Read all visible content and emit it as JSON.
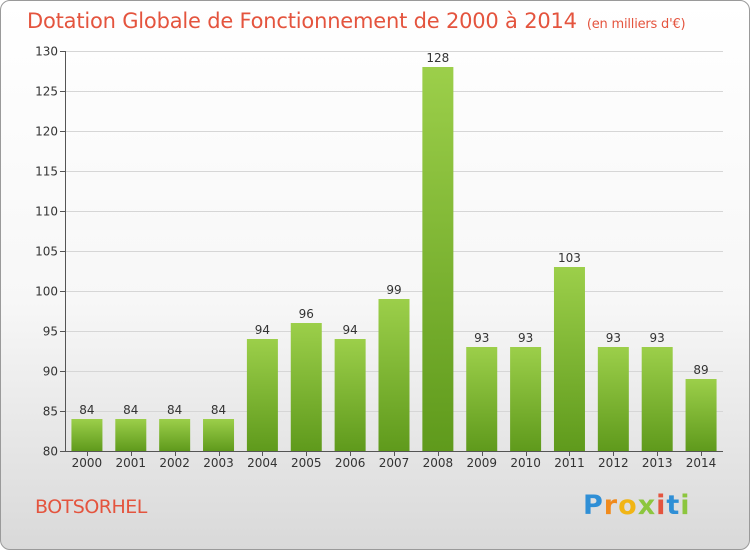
{
  "header": {
    "title": "Dotation Globale de Fonctionnement de 2000 à 2014",
    "subtitle": "(en milliers d'€)"
  },
  "place": "BOTSORHEL",
  "logo": {
    "letters": [
      "P",
      "r",
      "o",
      "x",
      "i",
      "t",
      "i"
    ]
  },
  "colors": {
    "title": "#e4543e",
    "bar_top": "#9ccf4a",
    "bar_bottom": "#5f9a1c",
    "grid": "#d6d6d6"
  },
  "chart_data": {
    "type": "bar",
    "title": "Dotation Globale de Fonctionnement de 2000 à 2014",
    "subtitle": "(en milliers d'€)",
    "categories": [
      "2000",
      "2001",
      "2002",
      "2003",
      "2004",
      "2005",
      "2006",
      "2007",
      "2008",
      "2009",
      "2010",
      "2011",
      "2012",
      "2013",
      "2014"
    ],
    "values": [
      84,
      84,
      84,
      84,
      94,
      96,
      94,
      99,
      128,
      93,
      93,
      103,
      93,
      93,
      89
    ],
    "ylim": [
      80,
      130
    ],
    "yticks": [
      80,
      85,
      90,
      95,
      100,
      105,
      110,
      115,
      120,
      125,
      130
    ],
    "grid": true,
    "xlabel": "",
    "ylabel": ""
  }
}
